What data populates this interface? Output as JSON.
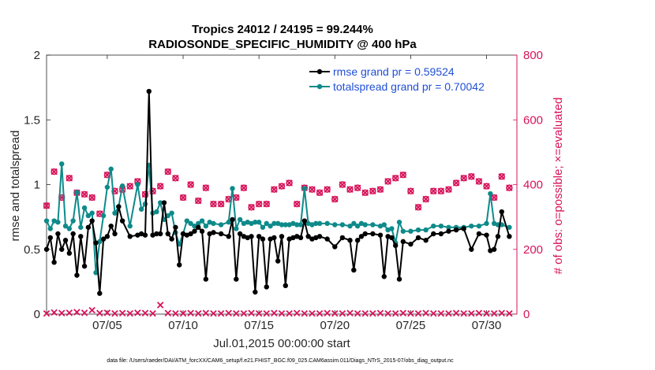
{
  "chart_data": {
    "type": "line",
    "title": "Tropics 24012 / 24195 = 99.244%",
    "subtitle": "RADIOSONDE_SPECIFIC_HUMIDITY @ 400 hPa",
    "xlabel": "Jul.01,2015 00:00:00 start",
    "ylabel_left": "rmse and totalspread",
    "ylabel_right": "# of obs: o=possible; ×=evaluated",
    "xlim": [
      1,
      32
    ],
    "ylim_left": [
      0,
      2
    ],
    "ylim_right": [
      0,
      800
    ],
    "x_ticks": [
      5,
      10,
      15,
      20,
      25,
      30
    ],
    "x_tick_labels": [
      "07/05",
      "07/10",
      "07/15",
      "07/20",
      "07/25",
      "07/30"
    ],
    "y_ticks_left": [
      0,
      0.5,
      1,
      1.5,
      2
    ],
    "y_tick_labels_left": [
      "0",
      "0.5",
      "1",
      "1.5",
      "2"
    ],
    "y_ticks_right": [
      0,
      200,
      400,
      600,
      800
    ],
    "y_tick_labels_right": [
      "0",
      "200",
      "400",
      "600",
      "800"
    ],
    "grid": false,
    "legend_position": "top-right",
    "footer": "data file: /Users/raeder/DAI/ATM_forcXX/CAM6_setup/f.e21.FHIST_BGC.f09_025.CAM6assim.011/Diags_NTrS_2015-07/obs_diag_output.nc",
    "series": [
      {
        "name": "rmse",
        "legend": "rmse grand pr = 0.59524",
        "axis": "left",
        "color": "#000000",
        "marker": "dot",
        "x": [
          1.0,
          1.25,
          1.5,
          1.75,
          2.0,
          2.25,
          2.5,
          2.75,
          3.0,
          3.25,
          3.5,
          3.75,
          4.0,
          4.25,
          4.5,
          4.75,
          5.0,
          5.25,
          5.5,
          5.75,
          6.0,
          6.5,
          7.0,
          7.25,
          7.5,
          7.75,
          8.0,
          8.25,
          8.5,
          8.75,
          9.0,
          9.25,
          9.5,
          9.75,
          10.0,
          10.25,
          10.5,
          10.75,
          11.0,
          11.25,
          11.5,
          11.75,
          12.0,
          12.5,
          13.0,
          13.25,
          13.5,
          13.75,
          14.0,
          14.25,
          14.5,
          14.75,
          15.0,
          15.25,
          15.5,
          15.75,
          16.0,
          16.25,
          16.5,
          16.75,
          17.0,
          17.25,
          17.5,
          17.75,
          18.0,
          18.25,
          18.5,
          18.75,
          19.0,
          19.5,
          20.0,
          20.5,
          21.0,
          21.25,
          21.5,
          21.75,
          22.0,
          22.5,
          23.0,
          23.25,
          23.5,
          23.75,
          24.0,
          24.25,
          24.5,
          25.0,
          25.5,
          26.0,
          26.5,
          27.0,
          27.5,
          28.0,
          28.5,
          29.0,
          29.5,
          30.0,
          30.25,
          30.5,
          30.75,
          31.0,
          31.5
        ],
        "values": [
          0.5,
          0.59,
          0.4,
          0.62,
          0.5,
          0.57,
          0.47,
          0.62,
          0.3,
          0.6,
          0.37,
          0.67,
          0.72,
          0.55,
          0.16,
          0.58,
          0.6,
          0.68,
          0.62,
          0.83,
          0.72,
          0.6,
          0.61,
          0.62,
          0.61,
          1.72,
          0.61,
          0.62,
          0.62,
          0.86,
          0.62,
          0.58,
          0.67,
          0.38,
          0.62,
          0.61,
          0.62,
          0.64,
          0.67,
          0.64,
          0.27,
          0.62,
          0.63,
          0.62,
          0.6,
          0.73,
          0.27,
          0.62,
          0.6,
          0.59,
          0.6,
          0.17,
          0.6,
          0.58,
          0.21,
          0.58,
          0.59,
          0.41,
          0.6,
          0.22,
          0.58,
          0.59,
          0.6,
          0.59,
          0.72,
          0.6,
          0.58,
          0.59,
          0.6,
          0.58,
          0.52,
          0.59,
          0.57,
          0.34,
          0.57,
          0.6,
          0.62,
          0.62,
          0.61,
          0.29,
          0.6,
          0.59,
          0.53,
          0.27,
          0.56,
          0.54,
          0.59,
          0.57,
          0.62,
          0.62,
          0.64,
          0.65,
          0.66,
          0.5,
          0.62,
          0.61,
          0.49,
          0.5,
          0.6,
          0.79,
          0.6
        ]
      },
      {
        "name": "totalspread",
        "legend": "totalspread grand pr = 0.70042",
        "axis": "left",
        "color": "#0e8a8a",
        "marker": "dot",
        "x": [
          1.0,
          1.25,
          1.5,
          1.75,
          2.0,
          2.25,
          2.5,
          2.75,
          3.0,
          3.25,
          3.5,
          3.75,
          4.0,
          4.25,
          4.5,
          4.75,
          5.0,
          5.25,
          5.5,
          5.75,
          6.0,
          6.5,
          7.0,
          7.25,
          7.5,
          7.75,
          8.0,
          8.25,
          8.5,
          8.75,
          9.0,
          9.25,
          9.5,
          9.75,
          10.0,
          10.25,
          10.5,
          10.75,
          11.0,
          11.25,
          11.5,
          11.75,
          12.0,
          12.5,
          13.0,
          13.25,
          13.5,
          13.75,
          14.0,
          14.25,
          14.5,
          14.75,
          15.0,
          15.25,
          15.5,
          15.75,
          16.0,
          16.25,
          16.5,
          16.75,
          17.0,
          17.25,
          17.5,
          17.75,
          18.0,
          18.25,
          18.5,
          18.75,
          19.0,
          19.5,
          20.0,
          20.5,
          21.0,
          21.25,
          21.5,
          21.75,
          22.0,
          22.5,
          23.0,
          23.25,
          23.5,
          23.75,
          24.0,
          24.25,
          24.5,
          25.0,
          25.5,
          26.0,
          26.5,
          27.0,
          27.5,
          28.0,
          28.5,
          29.0,
          29.5,
          30.0,
          30.25,
          30.5,
          30.75,
          31.0,
          31.5
        ],
        "values": [
          0.72,
          0.66,
          0.72,
          0.71,
          1.16,
          0.68,
          0.66,
          0.72,
          0.94,
          0.67,
          0.82,
          0.76,
          0.78,
          0.32,
          0.56,
          0.76,
          0.98,
          1.12,
          0.78,
          0.83,
          0.99,
          0.68,
          1.0,
          0.81,
          0.85,
          1.15,
          0.78,
          0.79,
          0.86,
          0.73,
          0.76,
          0.78,
          0.63,
          0.54,
          0.62,
          0.72,
          0.7,
          0.68,
          0.7,
          0.72,
          0.68,
          0.71,
          0.7,
          0.69,
          0.71,
          0.97,
          0.66,
          0.73,
          0.7,
          0.71,
          0.7,
          0.71,
          0.71,
          0.67,
          0.7,
          0.68,
          0.7,
          0.7,
          0.69,
          0.69,
          0.69,
          0.7,
          0.69,
          0.69,
          0.97,
          0.7,
          0.69,
          0.7,
          0.7,
          0.7,
          0.69,
          0.69,
          0.68,
          0.7,
          0.68,
          0.7,
          0.69,
          0.69,
          0.68,
          0.69,
          0.65,
          0.66,
          0.55,
          0.71,
          0.64,
          0.64,
          0.65,
          0.65,
          0.68,
          0.68,
          0.67,
          0.67,
          0.67,
          0.68,
          0.68,
          0.7,
          0.93,
          0.7,
          0.69,
          0.69,
          0.67
        ]
      },
      {
        "name": "obs_possible",
        "axis": "right",
        "color": "#d6135a",
        "marker": "circle",
        "x": [
          1.0,
          1.5,
          2.0,
          2.5,
          3.0,
          3.5,
          4.0,
          4.5,
          5.0,
          5.5,
          6.0,
          6.5,
          7.0,
          7.5,
          8.0,
          8.5,
          9.0,
          9.5,
          10.0,
          10.5,
          11.0,
          11.5,
          12.0,
          12.5,
          13.0,
          13.5,
          14.0,
          14.5,
          15.0,
          15.5,
          16.0,
          16.5,
          17.0,
          17.5,
          18.0,
          18.5,
          19.0,
          19.5,
          20.0,
          20.5,
          21.0,
          21.5,
          22.0,
          22.5,
          23.0,
          23.5,
          24.0,
          24.5,
          25.0,
          25.5,
          26.0,
          26.5,
          27.0,
          27.5,
          28.0,
          28.5,
          29.0,
          29.5,
          30.0,
          30.5,
          31.0,
          31.5
        ],
        "values": [
          335,
          440,
          360,
          420,
          375,
          370,
          360,
          310,
          430,
          380,
          385,
          395,
          410,
          370,
          380,
          395,
          440,
          420,
          360,
          400,
          350,
          390,
          340,
          340,
          355,
          360,
          390,
          330,
          340,
          340,
          385,
          395,
          405,
          340,
          390,
          385,
          375,
          385,
          355,
          400,
          385,
          390,
          375,
          380,
          385,
          410,
          420,
          430,
          380,
          330,
          355,
          380,
          380,
          385,
          405,
          420,
          425,
          410,
          395,
          360,
          425,
          390
        ]
      },
      {
        "name": "obs_evaluated",
        "axis": "right",
        "color": "#d6135a",
        "marker": "cross",
        "x": [
          1.0,
          1.5,
          2.0,
          2.5,
          3.0,
          3.5,
          4.0,
          4.5,
          5.0,
          5.5,
          6.0,
          6.5,
          7.0,
          7.5,
          8.0,
          8.5,
          9.0,
          9.5,
          10.0,
          10.5,
          11.0,
          11.5,
          12.0,
          12.5,
          13.0,
          13.5,
          14.0,
          14.5,
          15.0,
          15.5,
          16.0,
          16.5,
          17.0,
          17.5,
          18.0,
          18.5,
          19.0,
          19.5,
          20.0,
          20.5,
          21.0,
          21.5,
          22.0,
          22.5,
          23.0,
          23.5,
          24.0,
          24.5,
          25.0,
          25.5,
          26.0,
          26.5,
          27.0,
          27.5,
          28.0,
          28.5,
          29.0,
          29.5,
          30.0,
          30.5,
          31.0,
          31.5
        ],
        "values": [
          2,
          5,
          3,
          4,
          6,
          4,
          12,
          3,
          4,
          2,
          3,
          2,
          4,
          3,
          2,
          28,
          3,
          2,
          2,
          3,
          2,
          3,
          2,
          2,
          3,
          2,
          2,
          3,
          2,
          2,
          3,
          2,
          2,
          3,
          2,
          2,
          2,
          3,
          2,
          2,
          3,
          2,
          2,
          2,
          3,
          2,
          2,
          3,
          2,
          2,
          3,
          2,
          2,
          2,
          3,
          2,
          2,
          3,
          2,
          2,
          3,
          2
        ]
      }
    ]
  }
}
